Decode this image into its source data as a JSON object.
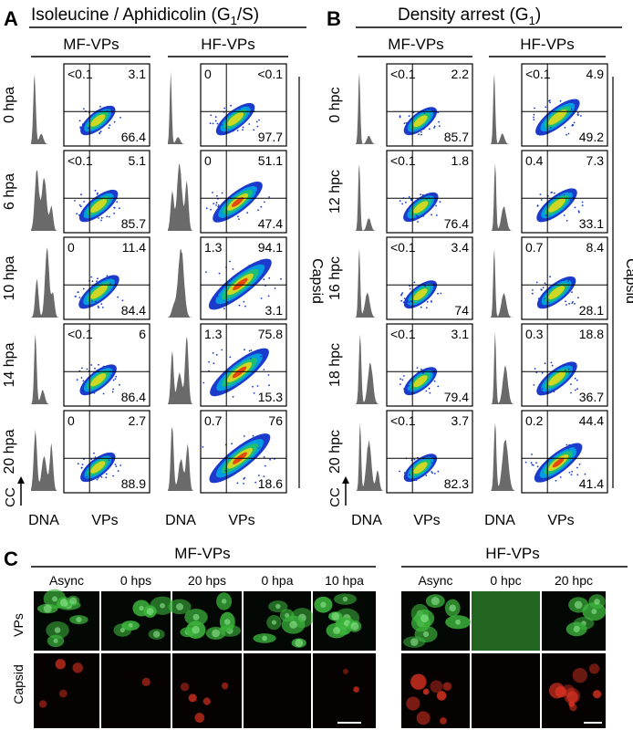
{
  "panelA": {
    "letter": "A",
    "title": "Isoleucine / Aphidicolin (G",
    "title_sub": "1",
    "title_end": "/S)",
    "groups": [
      "MF-VPs",
      "HF-VPs"
    ],
    "rows": [
      "0 hpa",
      "6 hpa",
      "10 hpa",
      "14 hpa",
      "20 hpa"
    ],
    "quad": [
      [
        [
          "<0.1",
          "3.1",
          "66.4"
        ],
        [
          "0",
          "<0.1",
          "97.7"
        ]
      ],
      [
        [
          "<0.1",
          "5.1",
          "85.7"
        ],
        [
          "0",
          "51.1",
          "47.4"
        ]
      ],
      [
        [
          "0",
          "11.4",
          "84.4"
        ],
        [
          "1.3",
          "94.1",
          "3.1"
        ]
      ],
      [
        [
          "<0.1",
          "6",
          "86.4"
        ],
        [
          "1.3",
          "75.8",
          "15.3"
        ]
      ],
      [
        [
          "0",
          "2.7",
          "88.9"
        ],
        [
          "0.7",
          "76",
          "18.6"
        ]
      ]
    ],
    "side_label": "Capsid"
  },
  "panelB": {
    "letter": "B",
    "title": "Density arrest (G",
    "title_sub": "1",
    "title_end": ")",
    "groups": [
      "MF-VPs",
      "HF-VPs"
    ],
    "rows": [
      "0 hpc",
      "12 hpc",
      "16 hpc",
      "18 hpc",
      "20 hpc"
    ],
    "quad": [
      [
        [
          "<0.1",
          "2.2",
          "85.7"
        ],
        [
          "<0.1",
          "4.9",
          "49.2"
        ]
      ],
      [
        [
          "<0.1",
          "1.8",
          "76.4"
        ],
        [
          "0.4",
          "7.3",
          "33.1"
        ]
      ],
      [
        [
          "<0.1",
          "3.4",
          "74"
        ],
        [
          "0.7",
          "8.4",
          "28.1"
        ]
      ],
      [
        [
          "<0.1",
          "3.1",
          "79.4"
        ],
        [
          "0.3",
          "18.8",
          "36.7"
        ]
      ],
      [
        [
          "<0.1",
          "3.7",
          "82.3"
        ],
        [
          "0.2",
          "44.4",
          "41.4"
        ]
      ]
    ],
    "side_label": "Capsid"
  },
  "axes": {
    "cc": "CC",
    "dna": "DNA",
    "vps": "VPs"
  },
  "panelC": {
    "letter": "C",
    "group1": "MF-VPs",
    "group2": "HF-VPs",
    "cols": [
      "Async",
      "0 hps",
      "20 hps",
      "0 hpa",
      "10 hpa",
      "Async",
      "0 hpc",
      "20 hpc"
    ],
    "row_labels": [
      "VPs",
      "Capsid"
    ]
  },
  "colors": {
    "histogram": "#6a6a6a",
    "green": "#3cb43c",
    "red": "#d23020"
  }
}
